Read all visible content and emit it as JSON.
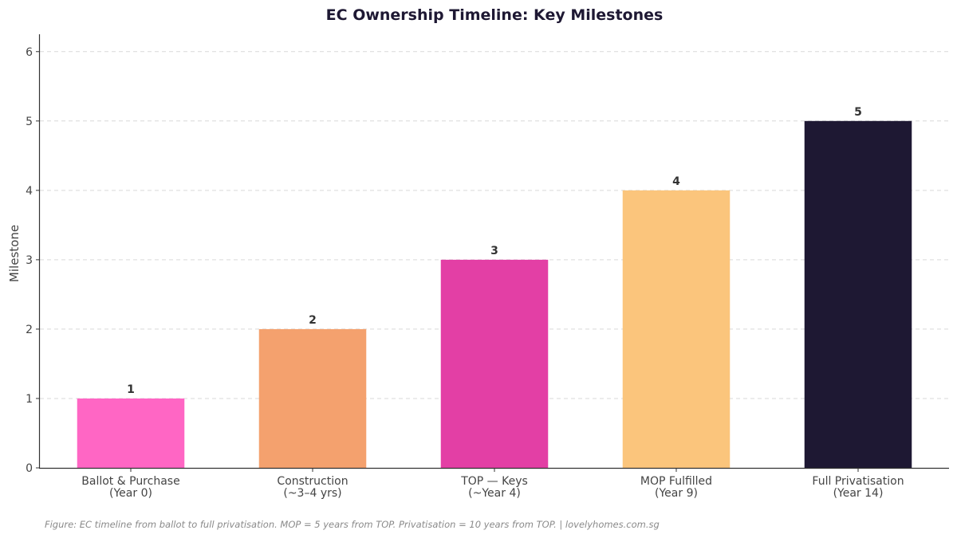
{
  "chart_data": {
    "type": "bar",
    "title": "EC Ownership Timeline: Key Milestones",
    "xlabel": "",
    "ylabel": "Milestone",
    "ylim": [
      0,
      6.25
    ],
    "yticks": [
      0,
      1,
      2,
      3,
      4,
      5,
      6
    ],
    "grid": true,
    "categories": [
      [
        "Ballot & Purchase",
        "(Year 0)"
      ],
      [
        "Construction",
        "(~3–4 yrs)"
      ],
      [
        "TOP — Keys",
        "(~Year 4)"
      ],
      [
        "MOP Fulfilled",
        "(Year 9)"
      ],
      [
        "Full Privatisation",
        "(Year 14)"
      ]
    ],
    "values": [
      1,
      2,
      3,
      4,
      5
    ],
    "data_labels": [
      "1",
      "2",
      "3",
      "4",
      "5"
    ],
    "colors": [
      "#ff66c4",
      "#f4a16e",
      "#e33fa5",
      "#fbc57c",
      "#1e1833"
    ]
  },
  "caption": "Figure: EC timeline from ballot to full privatisation. MOP = 5 years from TOP. Privatisation = 10 years from TOP.  |  lovelyhomes.com.sg"
}
